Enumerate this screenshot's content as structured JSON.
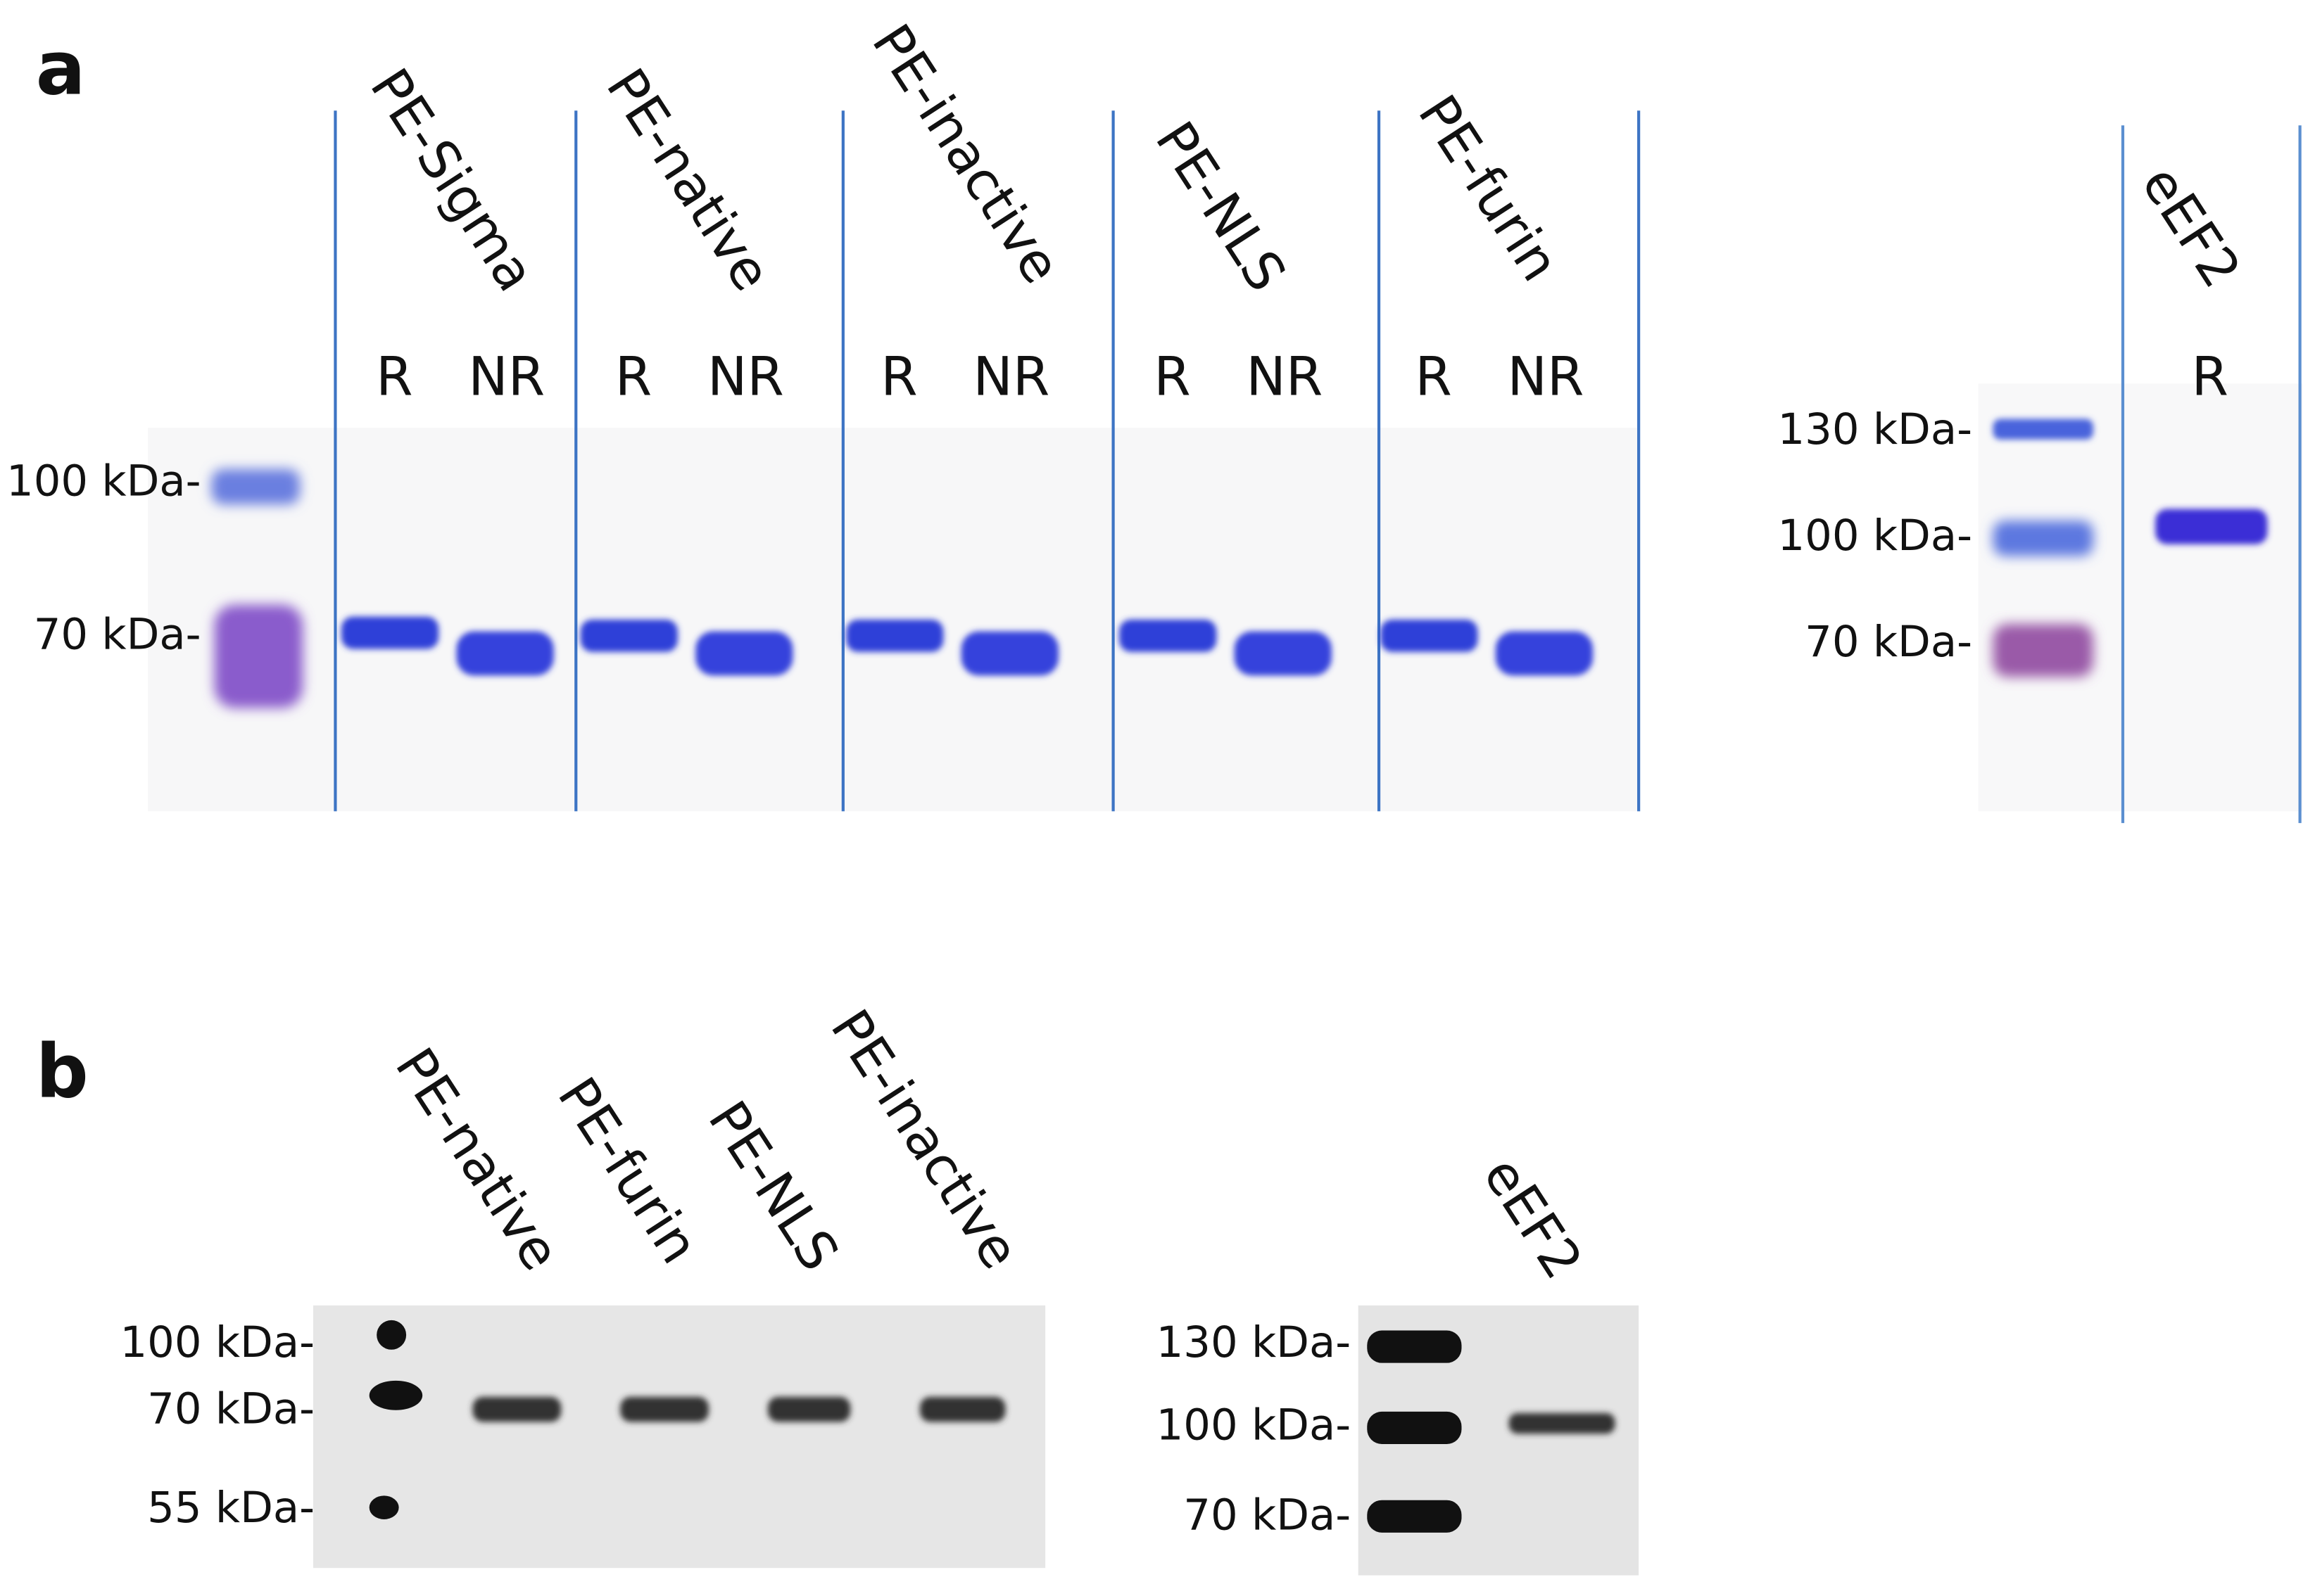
{
  "panel_a": {
    "label": "a",
    "samples": [
      {
        "name": "PE-Sigma",
        "lanes": [
          "R",
          "NR"
        ]
      },
      {
        "name": "PE-native",
        "lanes": [
          "R",
          "NR"
        ]
      },
      {
        "name": "PE-inactive",
        "lanes": [
          "R",
          "NR"
        ]
      },
      {
        "name": "PE-NLS",
        "lanes": [
          "R",
          "NR"
        ]
      },
      {
        "name": "PE-furin",
        "lanes": [
          "R",
          "NR"
        ]
      }
    ],
    "markers": [
      "100 kDa-",
      "70 kDa-"
    ],
    "eEF2": {
      "name": "eEF2",
      "lane": "R",
      "markers": [
        "130 kDa-",
        "100 kDa-",
        "70 kDa-"
      ]
    }
  },
  "panel_b": {
    "label": "b",
    "samples": [
      "PE-native",
      "PE-furin",
      "PE-NLS",
      "PE-inactive"
    ],
    "markers": [
      "100 kDa-",
      "70 kDa-",
      "55 kDa-"
    ],
    "eEF2": {
      "name": "eEF2",
      "markers": [
        "130 kDa-",
        "100 kDa-",
        "70 kDa-"
      ]
    }
  }
}
